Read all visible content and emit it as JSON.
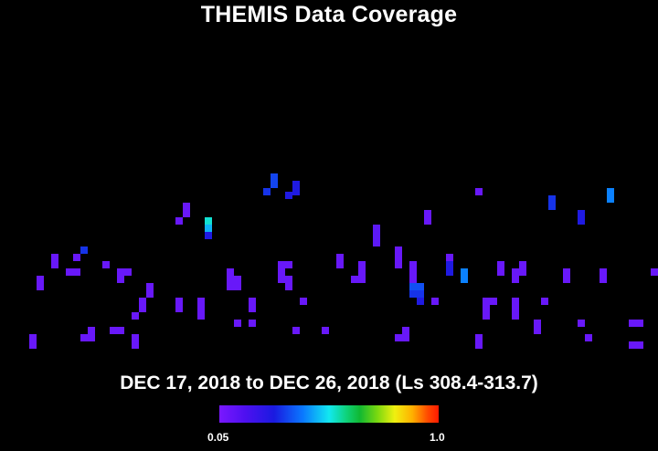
{
  "title": "THEMIS Data Coverage",
  "date_range": "DEC 17, 2018 to DEC 26, 2018 (Ls 308.4-313.7)",
  "colorbar": {
    "min_label": "0.05",
    "max_label": "1.0"
  },
  "chart_data": {
    "type": "heatmap",
    "title": "THEMIS Data Coverage",
    "value_range": [
      0.05,
      1.0
    ],
    "colorscale": [
      "#7a18ff",
      "#1a1ae0",
      "#0a78ff",
      "#12e8f0",
      "#10b832",
      "#f0f010",
      "#ff1a00"
    ],
    "cells": [
      [
        296,
        190,
        0.28
      ],
      [
        296,
        198,
        0.28
      ],
      [
        288,
        206,
        0.25
      ],
      [
        320,
        198,
        0.2
      ],
      [
        320,
        206,
        0.2
      ],
      [
        312,
        210,
        0.2
      ],
      [
        200,
        222,
        0.08
      ],
      [
        200,
        230,
        0.08
      ],
      [
        192,
        238,
        0.08
      ],
      [
        224,
        238,
        0.55
      ],
      [
        224,
        246,
        0.45
      ],
      [
        224,
        254,
        0.2
      ],
      [
        520,
        206,
        0.08
      ],
      [
        600,
        214,
        0.25
      ],
      [
        600,
        222,
        0.25
      ],
      [
        664,
        206,
        0.38
      ],
      [
        664,
        214,
        0.38
      ],
      [
        632,
        230,
        0.2
      ],
      [
        632,
        238,
        0.2
      ],
      [
        464,
        230,
        0.08
      ],
      [
        464,
        238,
        0.08
      ],
      [
        408,
        246,
        0.1
      ],
      [
        408,
        254,
        0.1
      ],
      [
        408,
        262,
        0.1
      ],
      [
        88,
        270,
        0.25
      ],
      [
        56,
        278,
        0.08
      ],
      [
        80,
        278,
        0.08
      ],
      [
        56,
        286,
        0.08
      ],
      [
        72,
        294,
        0.08
      ],
      [
        80,
        294,
        0.08
      ],
      [
        40,
        302,
        0.08
      ],
      [
        40,
        310,
        0.08
      ],
      [
        112,
        286,
        0.08
      ],
      [
        128,
        294,
        0.08
      ],
      [
        136,
        294,
        0.08
      ],
      [
        128,
        302,
        0.08
      ],
      [
        160,
        310,
        0.08
      ],
      [
        160,
        318,
        0.08
      ],
      [
        152,
        326,
        0.08
      ],
      [
        152,
        334,
        0.08
      ],
      [
        144,
        342,
        0.08
      ],
      [
        192,
        326,
        0.08
      ],
      [
        192,
        334,
        0.08
      ],
      [
        216,
        326,
        0.08
      ],
      [
        216,
        334,
        0.08
      ],
      [
        216,
        342,
        0.08
      ],
      [
        248,
        294,
        0.08
      ],
      [
        248,
        302,
        0.08
      ],
      [
        256,
        302,
        0.08
      ],
      [
        248,
        310,
        0.08
      ],
      [
        256,
        310,
        0.08
      ],
      [
        272,
        326,
        0.08
      ],
      [
        272,
        334,
        0.08
      ],
      [
        256,
        350,
        0.08
      ],
      [
        272,
        350,
        0.08
      ],
      [
        304,
        286,
        0.08
      ],
      [
        312,
        286,
        0.08
      ],
      [
        304,
        294,
        0.08
      ],
      [
        304,
        302,
        0.08
      ],
      [
        312,
        302,
        0.08
      ],
      [
        312,
        310,
        0.08
      ],
      [
        328,
        326,
        0.08
      ],
      [
        368,
        278,
        0.08
      ],
      [
        368,
        286,
        0.08
      ],
      [
        392,
        286,
        0.08
      ],
      [
        392,
        294,
        0.08
      ],
      [
        384,
        302,
        0.08
      ],
      [
        392,
        302,
        0.08
      ],
      [
        432,
        270,
        0.08
      ],
      [
        432,
        278,
        0.08
      ],
      [
        432,
        286,
        0.08
      ],
      [
        448,
        286,
        0.08
      ],
      [
        448,
        294,
        0.08
      ],
      [
        448,
        302,
        0.08
      ],
      [
        448,
        310,
        0.3
      ],
      [
        456,
        310,
        0.3
      ],
      [
        448,
        318,
        0.25
      ],
      [
        456,
        318,
        0.25
      ],
      [
        456,
        326,
        0.2
      ],
      [
        472,
        326,
        0.08
      ],
      [
        488,
        278,
        0.08
      ],
      [
        488,
        286,
        0.2
      ],
      [
        488,
        294,
        0.2
      ],
      [
        504,
        294,
        0.38
      ],
      [
        504,
        302,
        0.38
      ],
      [
        528,
        326,
        0.08
      ],
      [
        536,
        326,
        0.08
      ],
      [
        528,
        334,
        0.08
      ],
      [
        528,
        342,
        0.08
      ],
      [
        544,
        286,
        0.08
      ],
      [
        544,
        294,
        0.08
      ],
      [
        560,
        294,
        0.08
      ],
      [
        568,
        286,
        0.08
      ],
      [
        568,
        294,
        0.08
      ],
      [
        560,
        302,
        0.08
      ],
      [
        560,
        326,
        0.08
      ],
      [
        560,
        334,
        0.08
      ],
      [
        560,
        342,
        0.08
      ],
      [
        592,
        326,
        0.08
      ],
      [
        616,
        294,
        0.08
      ],
      [
        616,
        302,
        0.08
      ],
      [
        656,
        294,
        0.08
      ],
      [
        656,
        302,
        0.08
      ],
      [
        712,
        294,
        0.08
      ],
      [
        32,
        366,
        0.08
      ],
      [
        32,
        374,
        0.08
      ],
      [
        96,
        358,
        0.08
      ],
      [
        88,
        366,
        0.08
      ],
      [
        96,
        366,
        0.08
      ],
      [
        120,
        358,
        0.08
      ],
      [
        128,
        358,
        0.08
      ],
      [
        144,
        366,
        0.08
      ],
      [
        144,
        374,
        0.08
      ],
      [
        320,
        358,
        0.08
      ],
      [
        352,
        358,
        0.08
      ],
      [
        440,
        358,
        0.08
      ],
      [
        432,
        366,
        0.08
      ],
      [
        440,
        366,
        0.08
      ],
      [
        520,
        366,
        0.08
      ],
      [
        520,
        374,
        0.08
      ],
      [
        584,
        350,
        0.08
      ],
      [
        584,
        358,
        0.08
      ],
      [
        632,
        350,
        0.08
      ],
      [
        640,
        366,
        0.08
      ],
      [
        688,
        350,
        0.08
      ],
      [
        696,
        350,
        0.08
      ],
      [
        688,
        374,
        0.08
      ],
      [
        696,
        374,
        0.08
      ]
    ]
  }
}
